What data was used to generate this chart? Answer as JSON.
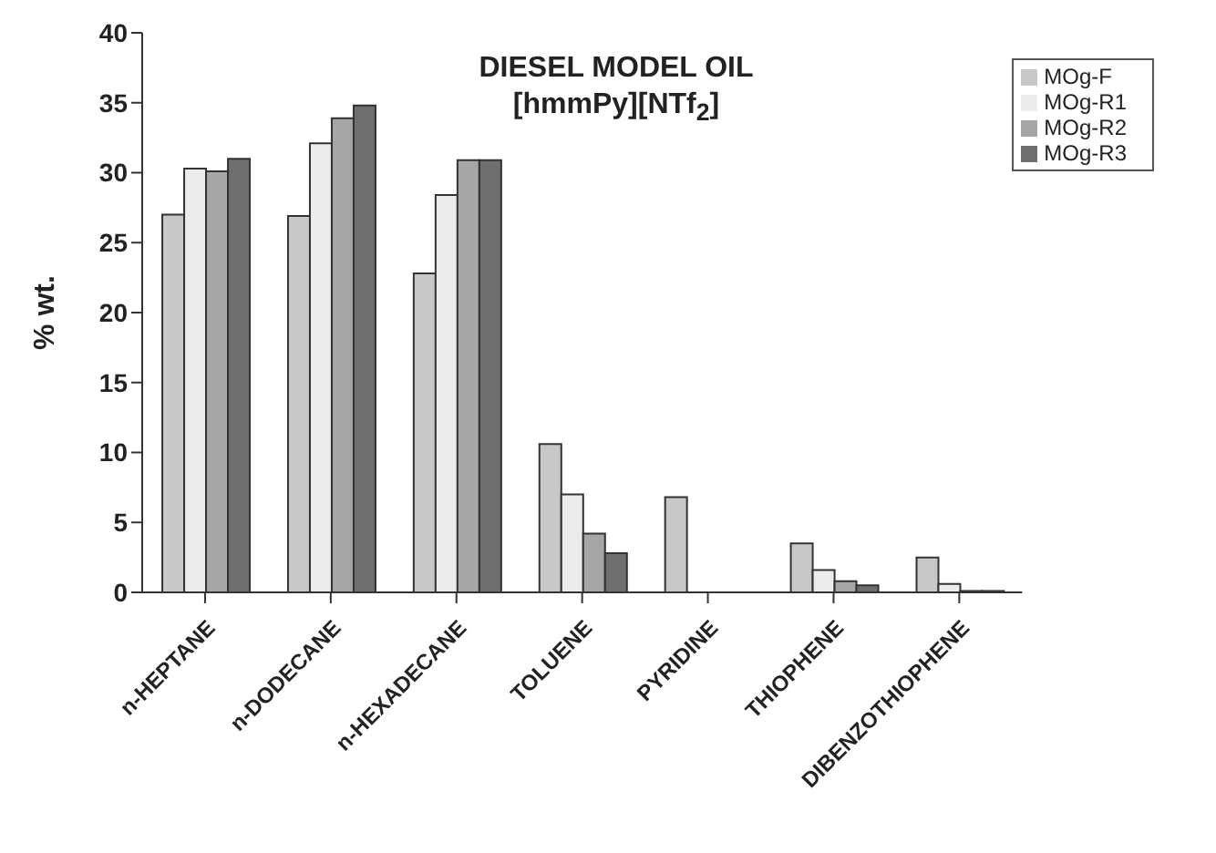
{
  "chart_data": {
    "type": "bar",
    "title": "DIESEL MODEL OIL",
    "subtitle": "[hmmPy][NTf$_{2}$]",
    "ylabel": "% wt.",
    "categories": [
      "n-HEPTANE",
      "n-DODECANE",
      "n-HEXADECANE",
      "TOLUENE",
      "PYRIDINE",
      "THIOPHENE",
      "DIBENZOTHIOPHENE"
    ],
    "series": [
      {
        "name": "MOg-F",
        "color": "#c8c8c8",
        "values": [
          27.0,
          26.9,
          22.8,
          10.6,
          6.8,
          3.5,
          2.5
        ]
      },
      {
        "name": "MOg-R1",
        "color": "#ececec",
        "values": [
          30.3,
          32.1,
          28.4,
          7.0,
          0,
          1.6,
          0.6
        ]
      },
      {
        "name": "MOg-R2",
        "color": "#a6a6a6",
        "values": [
          30.1,
          33.9,
          30.9,
          4.2,
          0,
          0.8,
          0.1
        ]
      },
      {
        "name": "MOg-R3",
        "color": "#6e6e6e",
        "values": [
          31.0,
          34.8,
          30.9,
          2.8,
          0,
          0.5,
          0.1
        ]
      }
    ],
    "ylim": [
      0,
      40
    ],
    "yticks": [
      0,
      5,
      10,
      15,
      20,
      25,
      30,
      35,
      40
    ],
    "grid": false,
    "legend": "top right"
  }
}
